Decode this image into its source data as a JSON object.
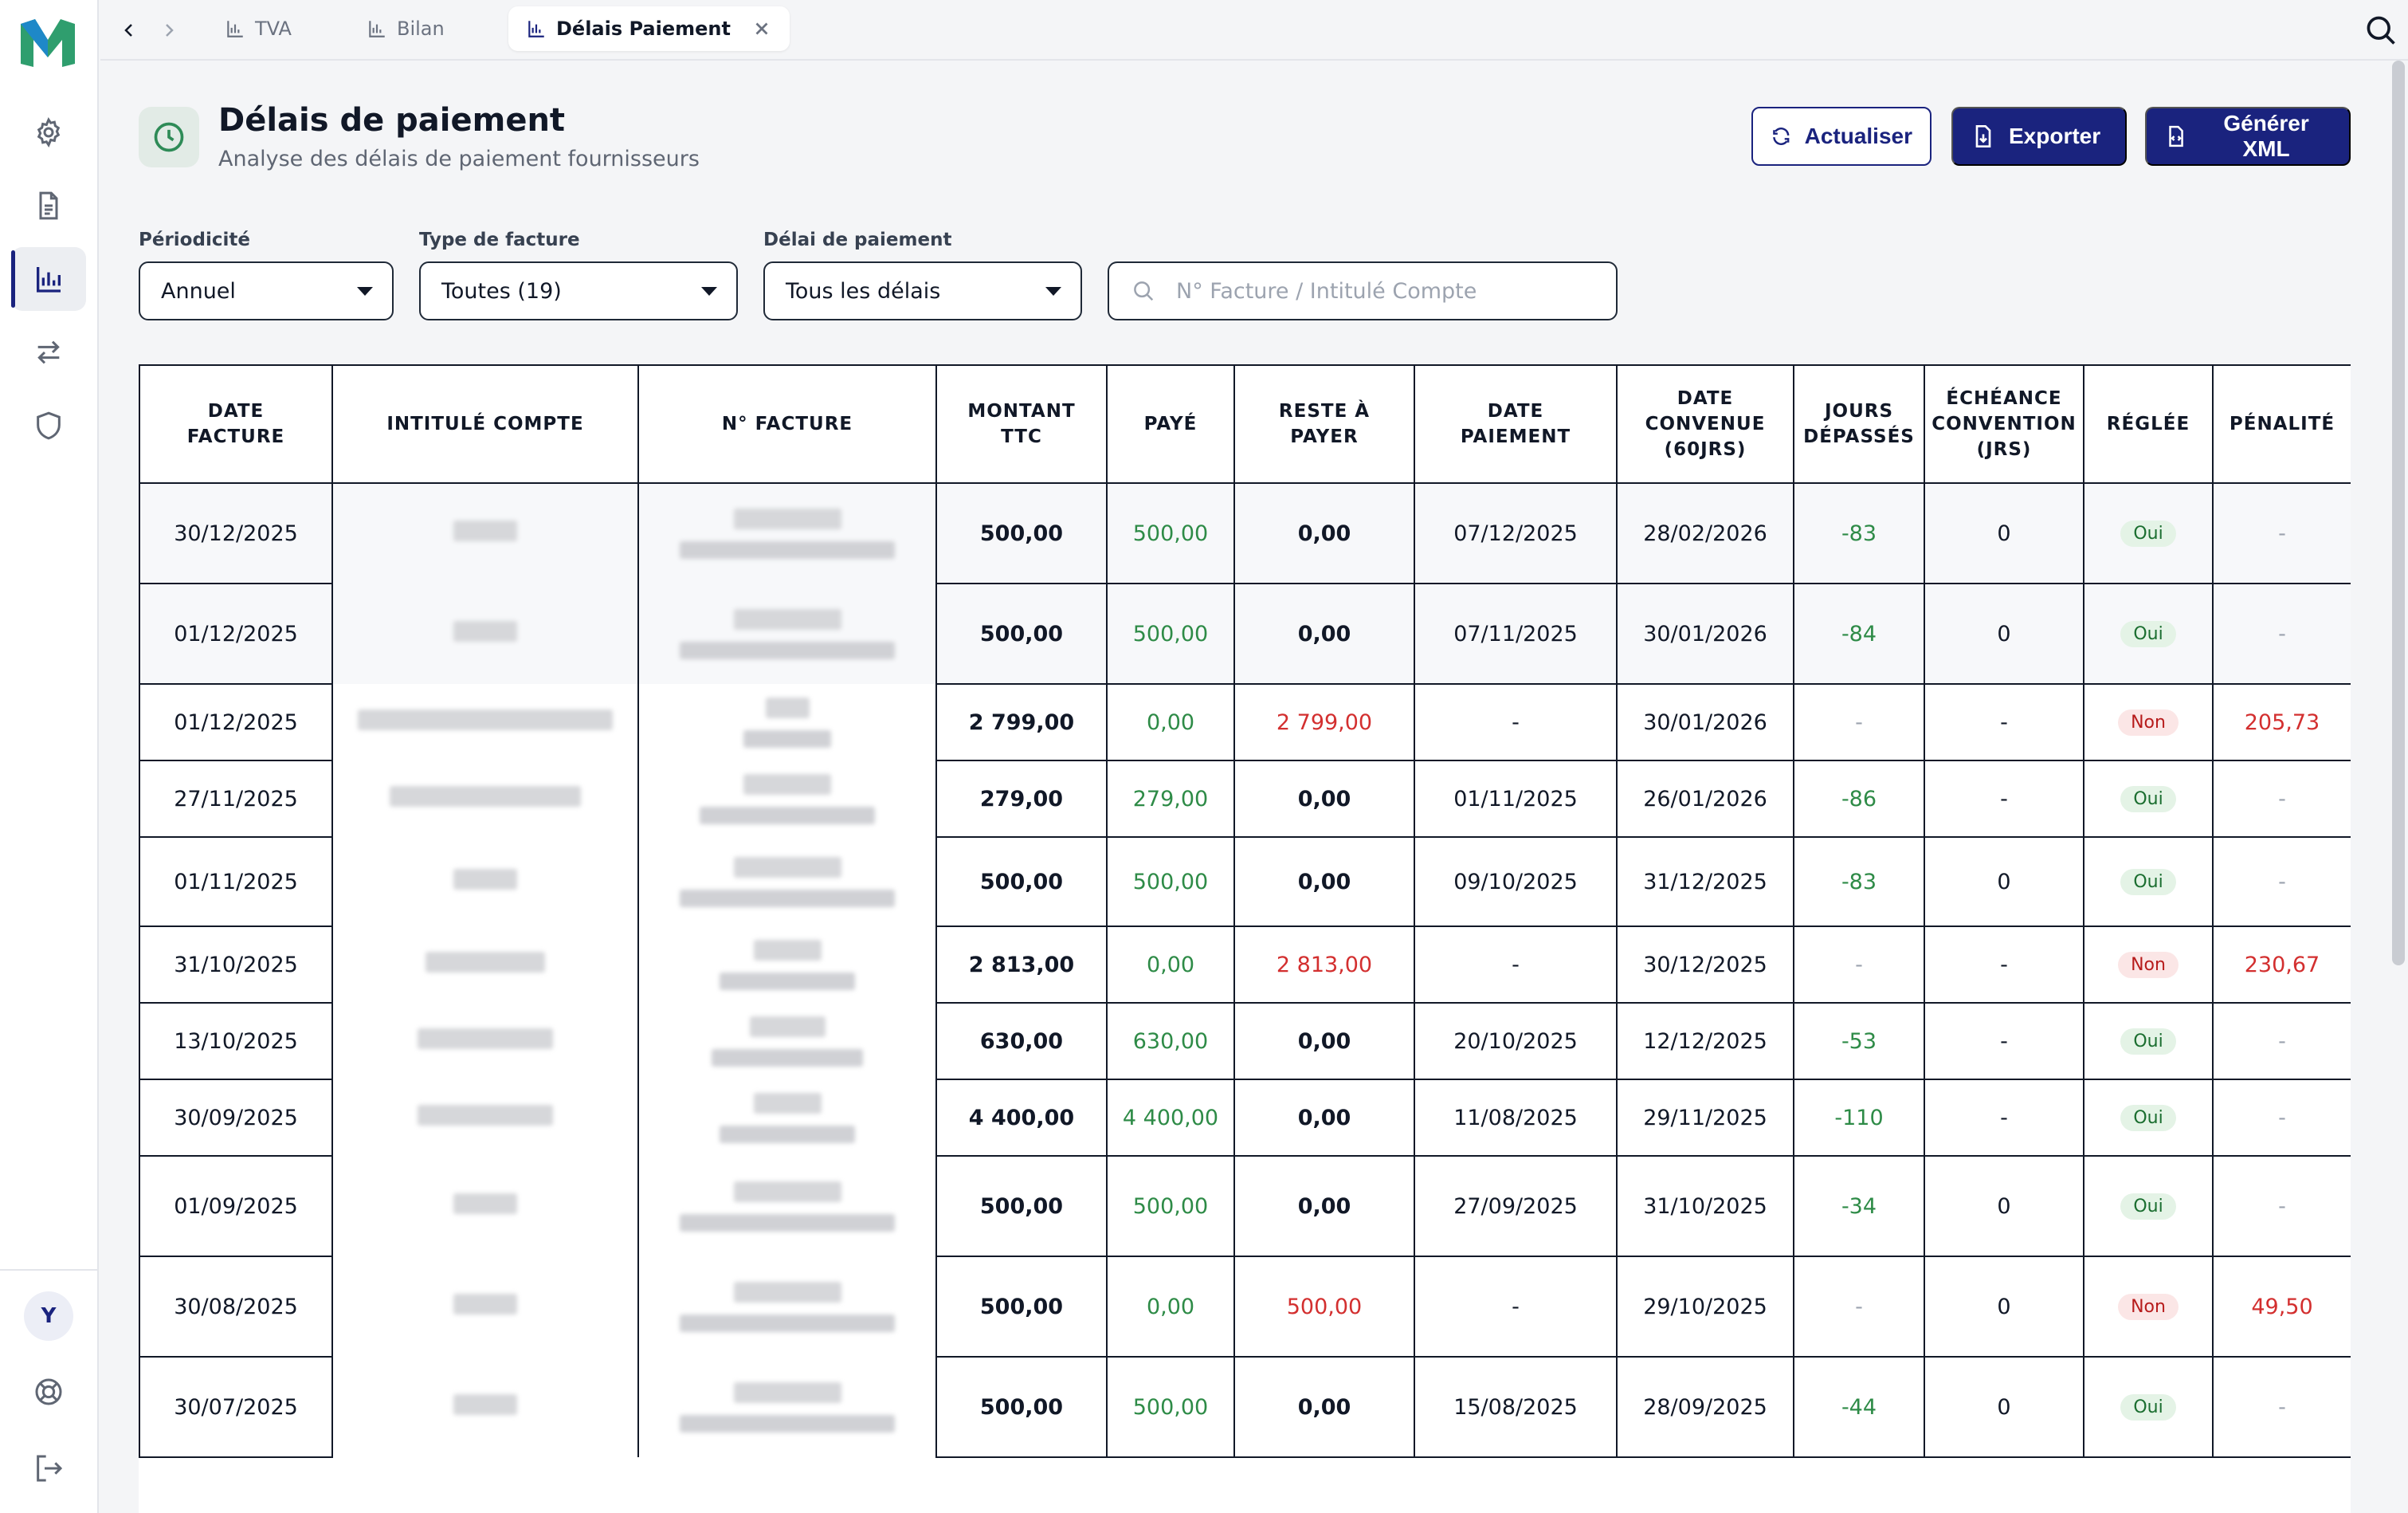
{
  "tabs": [
    {
      "label": "TVA",
      "active": false
    },
    {
      "label": "Bilan",
      "active": false
    },
    {
      "label": "Délais Paiement",
      "active": true
    }
  ],
  "sidebar": {
    "items": [
      {
        "icon": "gear-icon",
        "active": false
      },
      {
        "icon": "document-icon",
        "active": false
      },
      {
        "icon": "chart-icon",
        "active": true
      },
      {
        "icon": "transfer-icon",
        "active": false
      },
      {
        "icon": "shield-icon",
        "active": false
      }
    ],
    "avatar": "Y"
  },
  "header": {
    "title": "Délais de paiement",
    "subtitle": "Analyse des délais de paiement fournisseurs"
  },
  "actions": {
    "refresh": "Actualiser",
    "export": "Exporter",
    "xml": "Générer XML"
  },
  "filters": {
    "periodicity": {
      "label": "Périodicité",
      "value": "Annuel"
    },
    "invoice_type": {
      "label": "Type de facture",
      "value": "Toutes (19)"
    },
    "payment_delay": {
      "label": "Délai de paiement",
      "value": "Tous les délais"
    },
    "search": {
      "placeholder": "N° Facture / Intitulé Compte",
      "value": ""
    }
  },
  "table": {
    "columns": [
      "Date\nfacture",
      "Intitulé compte",
      "N° facture",
      "Montant\nTTC",
      "Payé",
      "Reste à\npayer",
      "Date\npaiement",
      "Date\nconvenue\n(60jrs)",
      "Jours\ndépassés",
      "Échéance\nconvention\n(jrs)",
      "Réglée",
      "Pénalité"
    ],
    "rows": [
      {
        "date": "30/12/2025",
        "montant": "500,00",
        "paye": "500,00",
        "reste": "0,00",
        "date_paiement": "07/12/2025",
        "date_convenue": "28/02/2026",
        "jours": "-83",
        "echeance": "0",
        "reglee": "Oui",
        "penalite": "-"
      },
      {
        "date": "01/12/2025",
        "montant": "500,00",
        "paye": "500,00",
        "reste": "0,00",
        "date_paiement": "07/11/2025",
        "date_convenue": "30/01/2026",
        "jours": "-84",
        "echeance": "0",
        "reglee": "Oui",
        "penalite": "-"
      },
      {
        "date": "01/12/2025",
        "montant": "2 799,00",
        "paye": "0,00",
        "reste": "2 799,00",
        "date_paiement": "-",
        "date_convenue": "30/01/2026",
        "jours": "-",
        "echeance": "-",
        "reglee": "Non",
        "penalite": "205,73"
      },
      {
        "date": "27/11/2025",
        "montant": "279,00",
        "paye": "279,00",
        "reste": "0,00",
        "date_paiement": "01/11/2025",
        "date_convenue": "26/01/2026",
        "jours": "-86",
        "echeance": "-",
        "reglee": "Oui",
        "penalite": "-"
      },
      {
        "date": "01/11/2025",
        "montant": "500,00",
        "paye": "500,00",
        "reste": "0,00",
        "date_paiement": "09/10/2025",
        "date_convenue": "31/12/2025",
        "jours": "-83",
        "echeance": "0",
        "reglee": "Oui",
        "penalite": "-"
      },
      {
        "date": "31/10/2025",
        "montant": "2 813,00",
        "paye": "0,00",
        "reste": "2 813,00",
        "date_paiement": "-",
        "date_convenue": "30/12/2025",
        "jours": "-",
        "echeance": "-",
        "reglee": "Non",
        "penalite": "230,67"
      },
      {
        "date": "13/10/2025",
        "montant": "630,00",
        "paye": "630,00",
        "reste": "0,00",
        "date_paiement": "20/10/2025",
        "date_convenue": "12/12/2025",
        "jours": "-53",
        "echeance": "-",
        "reglee": "Oui",
        "penalite": "-"
      },
      {
        "date": "30/09/2025",
        "montant": "4 400,00",
        "paye": "4 400,00",
        "reste": "0,00",
        "date_paiement": "11/08/2025",
        "date_convenue": "29/11/2025",
        "jours": "-110",
        "echeance": "-",
        "reglee": "Oui",
        "penalite": "-"
      },
      {
        "date": "01/09/2025",
        "montant": "500,00",
        "paye": "500,00",
        "reste": "0,00",
        "date_paiement": "27/09/2025",
        "date_convenue": "31/10/2025",
        "jours": "-34",
        "echeance": "0",
        "reglee": "Oui",
        "penalite": "-"
      },
      {
        "date": "30/08/2025",
        "montant": "500,00",
        "paye": "0,00",
        "reste": "500,00",
        "date_paiement": "-",
        "date_convenue": "29/10/2025",
        "jours": "-",
        "echeance": "0",
        "reglee": "Non",
        "penalite": "49,50"
      },
      {
        "date": "30/07/2025",
        "montant": "500,00",
        "paye": "500,00",
        "reste": "0,00",
        "date_paiement": "15/08/2025",
        "date_convenue": "28/09/2025",
        "jours": "-44",
        "echeance": "0",
        "reglee": "Oui",
        "penalite": "-"
      }
    ]
  },
  "colors": {
    "brand": "#1a237e",
    "positive": "#2e8b47",
    "negative": "#d32f2f"
  }
}
